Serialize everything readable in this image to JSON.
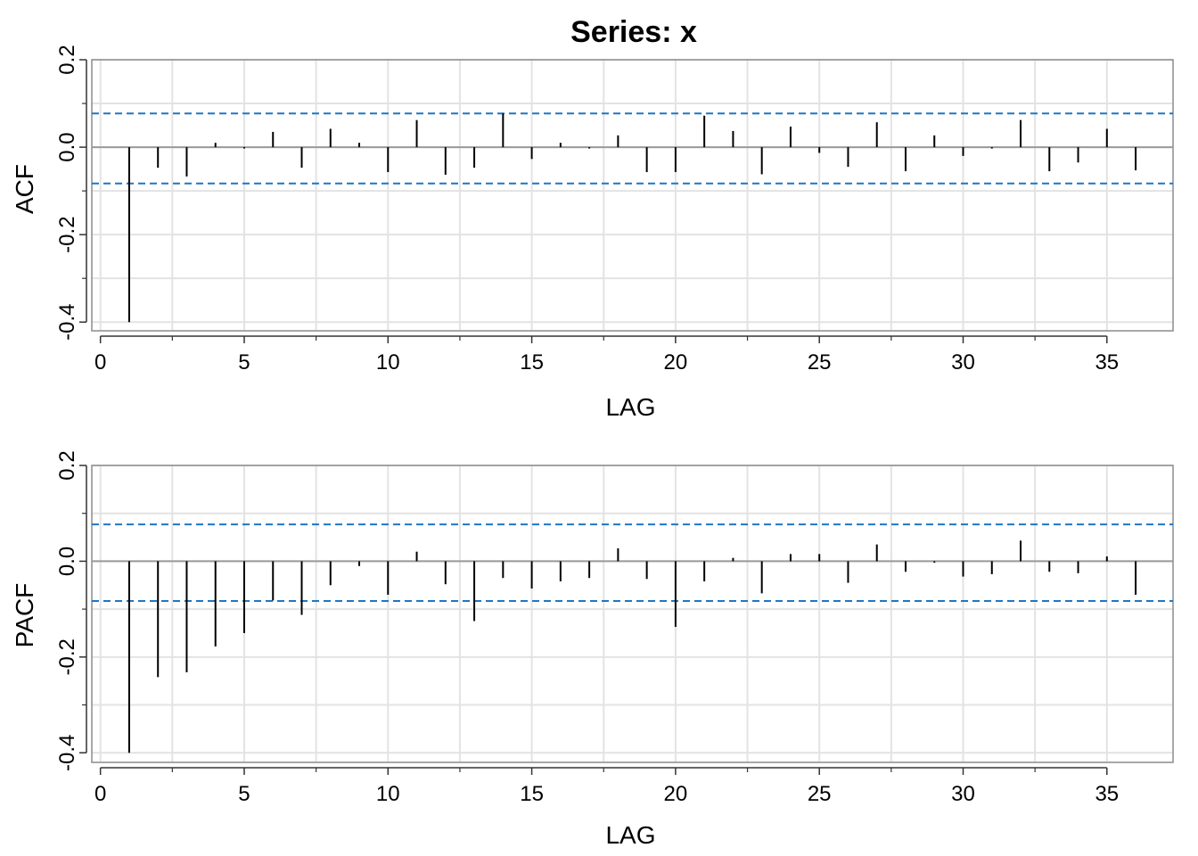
{
  "title": "Series:  x",
  "colors": {
    "bar": "#000000",
    "ci_line": "#1f77c4",
    "zero_line": "#9a9a9a",
    "grid": "#e3e3e3",
    "frame": "#8c8c8c"
  },
  "chart_data": [
    {
      "type": "bar",
      "name": "acf",
      "xlabel": "LAG",
      "ylabel": "ACF",
      "xlim": [
        -0.3,
        37.3
      ],
      "ylim": [
        -0.42,
        0.2
      ],
      "x_ticks": [
        0,
        5,
        10,
        15,
        20,
        25,
        30,
        35
      ],
      "x_tick_labels": [
        "0",
        "5",
        "10",
        "15",
        "20",
        "25",
        "30",
        "35"
      ],
      "y_ticks": [
        -0.4,
        -0.2,
        0.0,
        0.2
      ],
      "y_tick_labels": [
        "-0.4",
        "-0.2",
        "0.0",
        "0.2"
      ],
      "grid": true,
      "ci": [
        0.077,
        -0.083
      ],
      "x": [
        1,
        2,
        3,
        4,
        5,
        6,
        7,
        8,
        9,
        10,
        11,
        12,
        13,
        14,
        15,
        16,
        17,
        18,
        19,
        20,
        21,
        22,
        23,
        24,
        25,
        26,
        27,
        28,
        29,
        30,
        31,
        32,
        33,
        34,
        35,
        36
      ],
      "values": [
        -0.4,
        -0.047,
        -0.067,
        0.01,
        -0.003,
        0.035,
        -0.047,
        0.042,
        0.01,
        -0.057,
        0.062,
        -0.063,
        -0.047,
        0.077,
        -0.027,
        0.01,
        -0.003,
        0.027,
        -0.057,
        -0.057,
        0.072,
        0.037,
        -0.062,
        0.047,
        -0.013,
        -0.045,
        0.057,
        -0.055,
        0.027,
        -0.02,
        -0.003,
        0.062,
        -0.055,
        -0.035,
        0.042,
        -0.053
      ]
    },
    {
      "type": "bar",
      "name": "pacf",
      "xlabel": "LAG",
      "ylabel": "PACF",
      "xlim": [
        -0.3,
        37.3
      ],
      "ylim": [
        -0.42,
        0.2
      ],
      "x_ticks": [
        0,
        5,
        10,
        15,
        20,
        25,
        30,
        35
      ],
      "x_tick_labels": [
        "0",
        "5",
        "10",
        "15",
        "20",
        "25",
        "30",
        "35"
      ],
      "y_ticks": [
        -0.4,
        -0.2,
        0.0,
        0.2
      ],
      "y_tick_labels": [
        "-0.4",
        "-0.2",
        "0.0",
        "0.2"
      ],
      "grid": true,
      "ci": [
        0.077,
        -0.083
      ],
      "x": [
        1,
        2,
        3,
        4,
        5,
        6,
        7,
        8,
        9,
        10,
        11,
        12,
        13,
        14,
        15,
        16,
        17,
        18,
        19,
        20,
        21,
        22,
        23,
        24,
        25,
        26,
        27,
        28,
        29,
        30,
        31,
        32,
        33,
        34,
        35,
        36
      ],
      "values": [
        -0.4,
        -0.242,
        -0.232,
        -0.178,
        -0.15,
        -0.082,
        -0.112,
        -0.05,
        -0.01,
        -0.07,
        0.02,
        -0.048,
        -0.125,
        -0.035,
        -0.057,
        -0.042,
        -0.035,
        0.027,
        -0.037,
        -0.137,
        -0.042,
        0.007,
        -0.067,
        0.015,
        0.015,
        -0.045,
        0.035,
        -0.022,
        -0.003,
        -0.032,
        -0.027,
        0.043,
        -0.022,
        -0.025,
        0.01,
        -0.07
      ]
    }
  ]
}
